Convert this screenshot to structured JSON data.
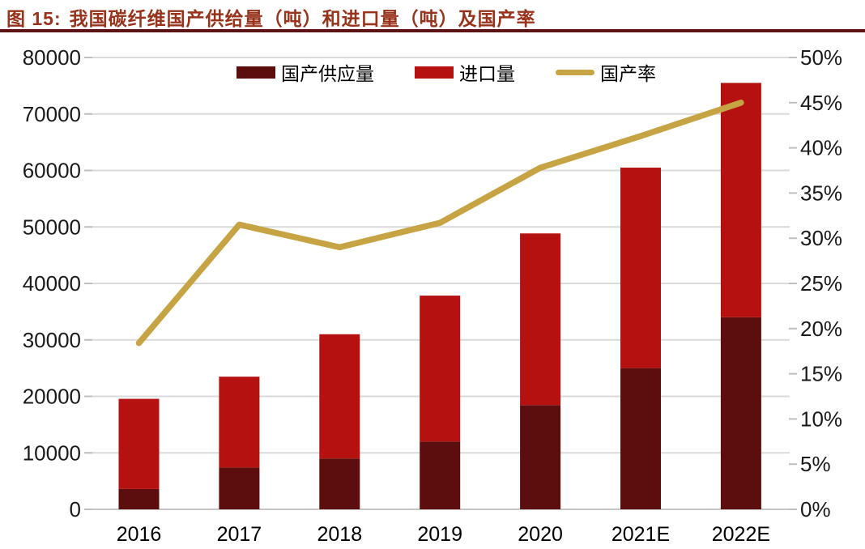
{
  "figure": {
    "label": "图 15:",
    "title": "我国碳纤维国产供给量（吨）和进口量（吨）及国产率"
  },
  "colors": {
    "title_text": "#98331b",
    "title_rule": "#5c1313",
    "domestic_bar": "#5c0e0e",
    "import_bar": "#b51111",
    "rate_line": "#c6a443",
    "gridline": "#dadada",
    "axis_line": "#c6c6c6",
    "tick_mark": "#bfbfbf",
    "axis_text": "#1a1a1a",
    "background": "#ffffff"
  },
  "chart_data": {
    "type": "bar",
    "subtype": "stacked-bars-with-line",
    "title": "图 15: 我国碳纤维国产供给量（吨）和进口量（吨）及国产率",
    "categories": [
      "2016",
      "2017",
      "2018",
      "2019",
      "2020",
      "2021E",
      "2022E"
    ],
    "series": [
      {
        "name": "国产供应量",
        "type": "bar",
        "stack": "total",
        "color_key": "domestic_bar",
        "values": [
          3600,
          7400,
          9000,
          12000,
          18450,
          25000,
          34000
        ]
      },
      {
        "name": "进口量",
        "type": "bar",
        "stack": "total",
        "color_key": "import_bar",
        "values": [
          15963,
          16087,
          22000,
          25840,
          30401,
          35500,
          41500
        ]
      },
      {
        "name": "国产率",
        "type": "line",
        "axis": "right",
        "color_key": "rate_line",
        "values": [
          18.4,
          31.5,
          29.0,
          31.7,
          37.8,
          41.3,
          45.0
        ]
      }
    ],
    "stack_totals": [
      19563,
      23487,
      31000,
      37840,
      48851,
      60500,
      75500
    ],
    "left_axis": {
      "min": 0,
      "max": 80000,
      "step": 10000,
      "ticks": [
        "0",
        "10000",
        "20000",
        "30000",
        "40000",
        "50000",
        "60000",
        "70000",
        "80000"
      ]
    },
    "right_axis": {
      "min": 0,
      "max": 50,
      "step": 5,
      "suffix": "%",
      "ticks": [
        "0%",
        "5%",
        "10%",
        "15%",
        "20%",
        "25%",
        "30%",
        "35%",
        "40%",
        "45%",
        "50%"
      ]
    },
    "legend_position": "top",
    "grid": true
  }
}
